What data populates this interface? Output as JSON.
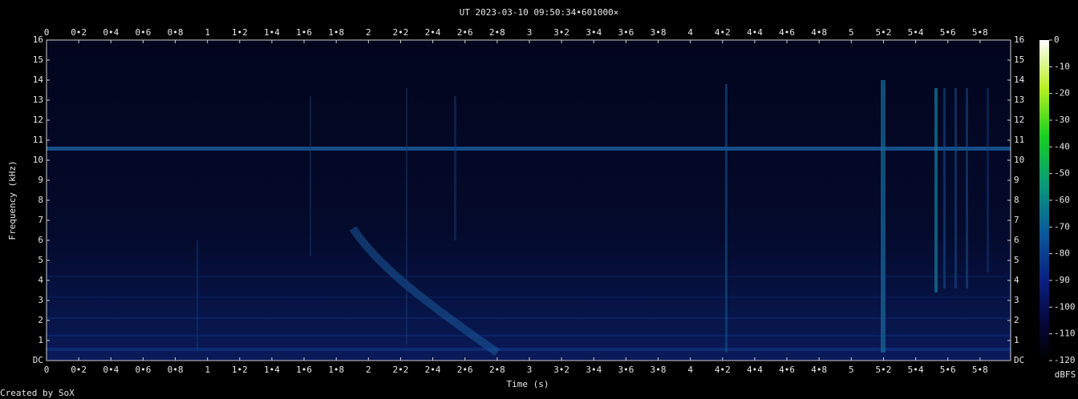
{
  "chart_data": {
    "type": "spectrogram",
    "title": "UT 2023-03-10 09:50:34•601000×",
    "x_label": "Time (s)",
    "y_label": "Frequency (kHz)",
    "xlim": [
      0,
      5.99
    ],
    "xticks": [
      0,
      {
        "value": 0.2,
        "label": "0•2"
      },
      {
        "value": 0.4,
        "label": "0•4"
      },
      {
        "value": 0.6,
        "label": "0•6"
      },
      {
        "value": 0.8,
        "label": "0•8"
      },
      1,
      {
        "value": 1.2,
        "label": "1•2"
      },
      {
        "value": 1.4,
        "label": "1•4"
      },
      {
        "value": 1.6,
        "label": "1•6"
      },
      {
        "value": 1.8,
        "label": "1•8"
      },
      2,
      {
        "value": 2.2,
        "label": "2•2"
      },
      {
        "value": 2.4,
        "label": "2•4"
      },
      {
        "value": 2.6,
        "label": "2•6"
      },
      {
        "value": 2.8,
        "label": "2•8"
      },
      3,
      {
        "value": 3.2,
        "label": "3•2"
      },
      {
        "value": 3.4,
        "label": "3•4"
      },
      {
        "value": 3.6,
        "label": "3•6"
      },
      {
        "value": 3.8,
        "label": "3•8"
      },
      4,
      {
        "value": 4.2,
        "label": "4•2"
      },
      {
        "value": 4.4,
        "label": "4•4"
      },
      {
        "value": 4.6,
        "label": "4•6"
      },
      {
        "value": 4.8,
        "label": "4•8"
      },
      5,
      {
        "value": 5.2,
        "label": "5•2"
      },
      {
        "value": 5.4,
        "label": "5•4"
      },
      {
        "value": 5.6,
        "label": "5•6"
      },
      {
        "value": 5.8,
        "label": "5•8"
      }
    ],
    "ylim": [
      0,
      16
    ],
    "yticks": [
      {
        "value": 0,
        "label": "DC"
      },
      1,
      2,
      3,
      4,
      5,
      6,
      7,
      8,
      9,
      10,
      11,
      12,
      13,
      14,
      15,
      16
    ],
    "colorbar": {
      "label": "dBFS",
      "lim": [
        -120,
        0
      ],
      "ticks": [
        0,
        -10,
        -20,
        -30,
        -40,
        -50,
        -60,
        -70,
        -80,
        -90,
        -100,
        -110,
        -120
      ]
    },
    "footer": "Created by SoX"
  }
}
